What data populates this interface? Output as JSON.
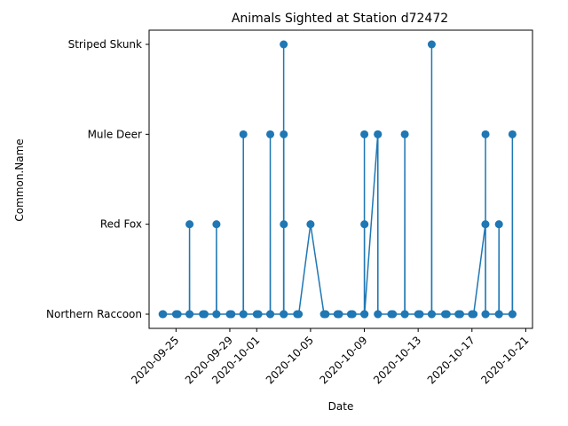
{
  "chart_data": {
    "type": "line",
    "title": "Animals Sighted at Station d72472",
    "xlabel": "Date",
    "ylabel": "Common.Name",
    "categories": [
      "Northern Raccoon",
      "Red Fox",
      "Mule Deer",
      "Striped Skunk"
    ],
    "xlim": [
      "2020-09-23T00:00",
      "2020-10-21T12:00"
    ],
    "xticks": [
      "2020-09-25",
      "2020-09-29",
      "2020-10-01",
      "2020-10-05",
      "2020-10-09",
      "2020-10-13",
      "2020-10-17",
      "2020-10-21"
    ],
    "grid": false,
    "legend": "none",
    "series": [
      {
        "color": "#1f77b4",
        "points": [
          [
            "2020-09-24T00:00",
            "Northern Raccoon"
          ],
          [
            "2020-09-24T01:00",
            "Northern Raccoon"
          ],
          [
            "2020-09-25T00:00",
            "Northern Raccoon"
          ],
          [
            "2020-09-25T03:00",
            "Northern Raccoon"
          ],
          [
            "2020-09-26T00:00",
            "Northern Raccoon"
          ],
          [
            "2020-09-26T00:10",
            "Red Fox"
          ],
          [
            "2020-09-26T00:20",
            "Northern Raccoon"
          ],
          [
            "2020-09-27T00:00",
            "Northern Raccoon"
          ],
          [
            "2020-09-27T03:00",
            "Northern Raccoon"
          ],
          [
            "2020-09-28T00:00",
            "Northern Raccoon"
          ],
          [
            "2020-09-28T00:10",
            "Red Fox"
          ],
          [
            "2020-09-28T00:20",
            "Northern Raccoon"
          ],
          [
            "2020-09-29T00:00",
            "Northern Raccoon"
          ],
          [
            "2020-09-29T03:00",
            "Northern Raccoon"
          ],
          [
            "2020-09-30T00:00",
            "Northern Raccoon"
          ],
          [
            "2020-09-30T00:10",
            "Mule Deer"
          ],
          [
            "2020-09-30T00:20",
            "Northern Raccoon"
          ],
          [
            "2020-10-01T00:00",
            "Northern Raccoon"
          ],
          [
            "2020-10-01T03:00",
            "Northern Raccoon"
          ],
          [
            "2020-10-02T00:00",
            "Northern Raccoon"
          ],
          [
            "2020-10-02T00:10",
            "Mule Deer"
          ],
          [
            "2020-10-02T00:20",
            "Northern Raccoon"
          ],
          [
            "2020-10-03T00:00",
            "Northern Raccoon"
          ],
          [
            "2020-10-03T00:05",
            "Striped Skunk"
          ],
          [
            "2020-10-03T00:10",
            "Northern Raccoon"
          ],
          [
            "2020-10-03T00:15",
            "Mule Deer"
          ],
          [
            "2020-10-03T00:20",
            "Red Fox"
          ],
          [
            "2020-10-03T00:25",
            "Northern Raccoon"
          ],
          [
            "2020-10-04T00:00",
            "Northern Raccoon"
          ],
          [
            "2020-10-04T03:00",
            "Northern Raccoon"
          ],
          [
            "2020-10-05T00:00",
            "Red Fox"
          ],
          [
            "2020-10-06T00:00",
            "Northern Raccoon"
          ],
          [
            "2020-10-06T03:00",
            "Northern Raccoon"
          ],
          [
            "2020-10-07T00:00",
            "Northern Raccoon"
          ],
          [
            "2020-10-07T03:00",
            "Northern Raccoon"
          ],
          [
            "2020-10-08T00:00",
            "Northern Raccoon"
          ],
          [
            "2020-10-08T03:00",
            "Northern Raccoon"
          ],
          [
            "2020-10-09T00:00",
            "Northern Raccoon"
          ],
          [
            "2020-10-09T00:05",
            "Mule Deer"
          ],
          [
            "2020-10-09T00:10",
            "Northern Raccoon"
          ],
          [
            "2020-10-09T00:15",
            "Red Fox"
          ],
          [
            "2020-10-09T00:20",
            "Northern Raccoon"
          ],
          [
            "2020-10-10T00:00",
            "Mule Deer"
          ],
          [
            "2020-10-10T00:05",
            "Northern Raccoon"
          ],
          [
            "2020-10-10T00:10",
            "Mule Deer"
          ],
          [
            "2020-10-10T00:15",
            "Northern Raccoon"
          ],
          [
            "2020-10-11T00:00",
            "Northern Raccoon"
          ],
          [
            "2020-10-11T03:00",
            "Northern Raccoon"
          ],
          [
            "2020-10-12T00:00",
            "Northern Raccoon"
          ],
          [
            "2020-10-12T00:10",
            "Mule Deer"
          ],
          [
            "2020-10-12T00:20",
            "Northern Raccoon"
          ],
          [
            "2020-10-13T00:00",
            "Northern Raccoon"
          ],
          [
            "2020-10-13T03:00",
            "Northern Raccoon"
          ],
          [
            "2020-10-14T00:00",
            "Northern Raccoon"
          ],
          [
            "2020-10-14T00:10",
            "Striped Skunk"
          ],
          [
            "2020-10-14T00:20",
            "Northern Raccoon"
          ],
          [
            "2020-10-15T00:00",
            "Northern Raccoon"
          ],
          [
            "2020-10-15T03:00",
            "Northern Raccoon"
          ],
          [
            "2020-10-16T00:00",
            "Northern Raccoon"
          ],
          [
            "2020-10-16T03:00",
            "Northern Raccoon"
          ],
          [
            "2020-10-17T00:00",
            "Northern Raccoon"
          ],
          [
            "2020-10-17T03:00",
            "Northern Raccoon"
          ],
          [
            "2020-10-18T00:00",
            "Red Fox"
          ],
          [
            "2020-10-18T00:05",
            "Northern Raccoon"
          ],
          [
            "2020-10-18T00:10",
            "Mule Deer"
          ],
          [
            "2020-10-18T00:15",
            "Northern Raccoon"
          ],
          [
            "2020-10-19T00:00",
            "Northern Raccoon"
          ],
          [
            "2020-10-19T00:10",
            "Red Fox"
          ],
          [
            "2020-10-19T00:20",
            "Northern Raccoon"
          ],
          [
            "2020-10-20T00:00",
            "Northern Raccoon"
          ],
          [
            "2020-10-20T00:10",
            "Mule Deer"
          ],
          [
            "2020-10-20T00:20",
            "Northern Raccoon"
          ]
        ]
      }
    ]
  }
}
